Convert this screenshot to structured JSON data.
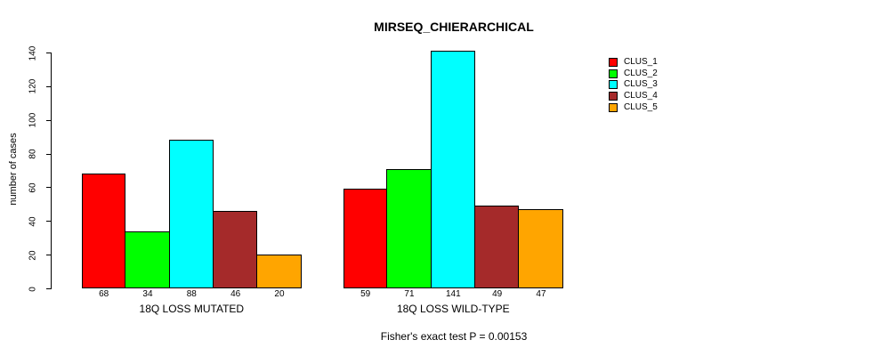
{
  "chart_data": {
    "type": "bar",
    "title": "MIRSEQ_CHIERARCHICAL",
    "xlabel": "",
    "ylabel": "number of cases",
    "footnote": "Fisher's exact test P = 0.00153",
    "ylim": [
      0,
      140
    ],
    "yticks": [
      0,
      20,
      40,
      60,
      80,
      100,
      120,
      140
    ],
    "grid": false,
    "legend_position": "right",
    "series": [
      {
        "name": "CLUS_1",
        "color": "#FF0000"
      },
      {
        "name": "CLUS_2",
        "color": "#00FF00"
      },
      {
        "name": "CLUS_3",
        "color": "#00FFFF"
      },
      {
        "name": "CLUS_4",
        "color": "#A52A2A"
      },
      {
        "name": "CLUS_5",
        "color": "#FFA500"
      }
    ],
    "groups": [
      {
        "label": "18Q LOSS MUTATED",
        "values": [
          68,
          34,
          88,
          46,
          20
        ]
      },
      {
        "label": "18Q LOSS WILD-TYPE",
        "values": [
          59,
          71,
          141,
          49,
          47
        ]
      }
    ]
  }
}
